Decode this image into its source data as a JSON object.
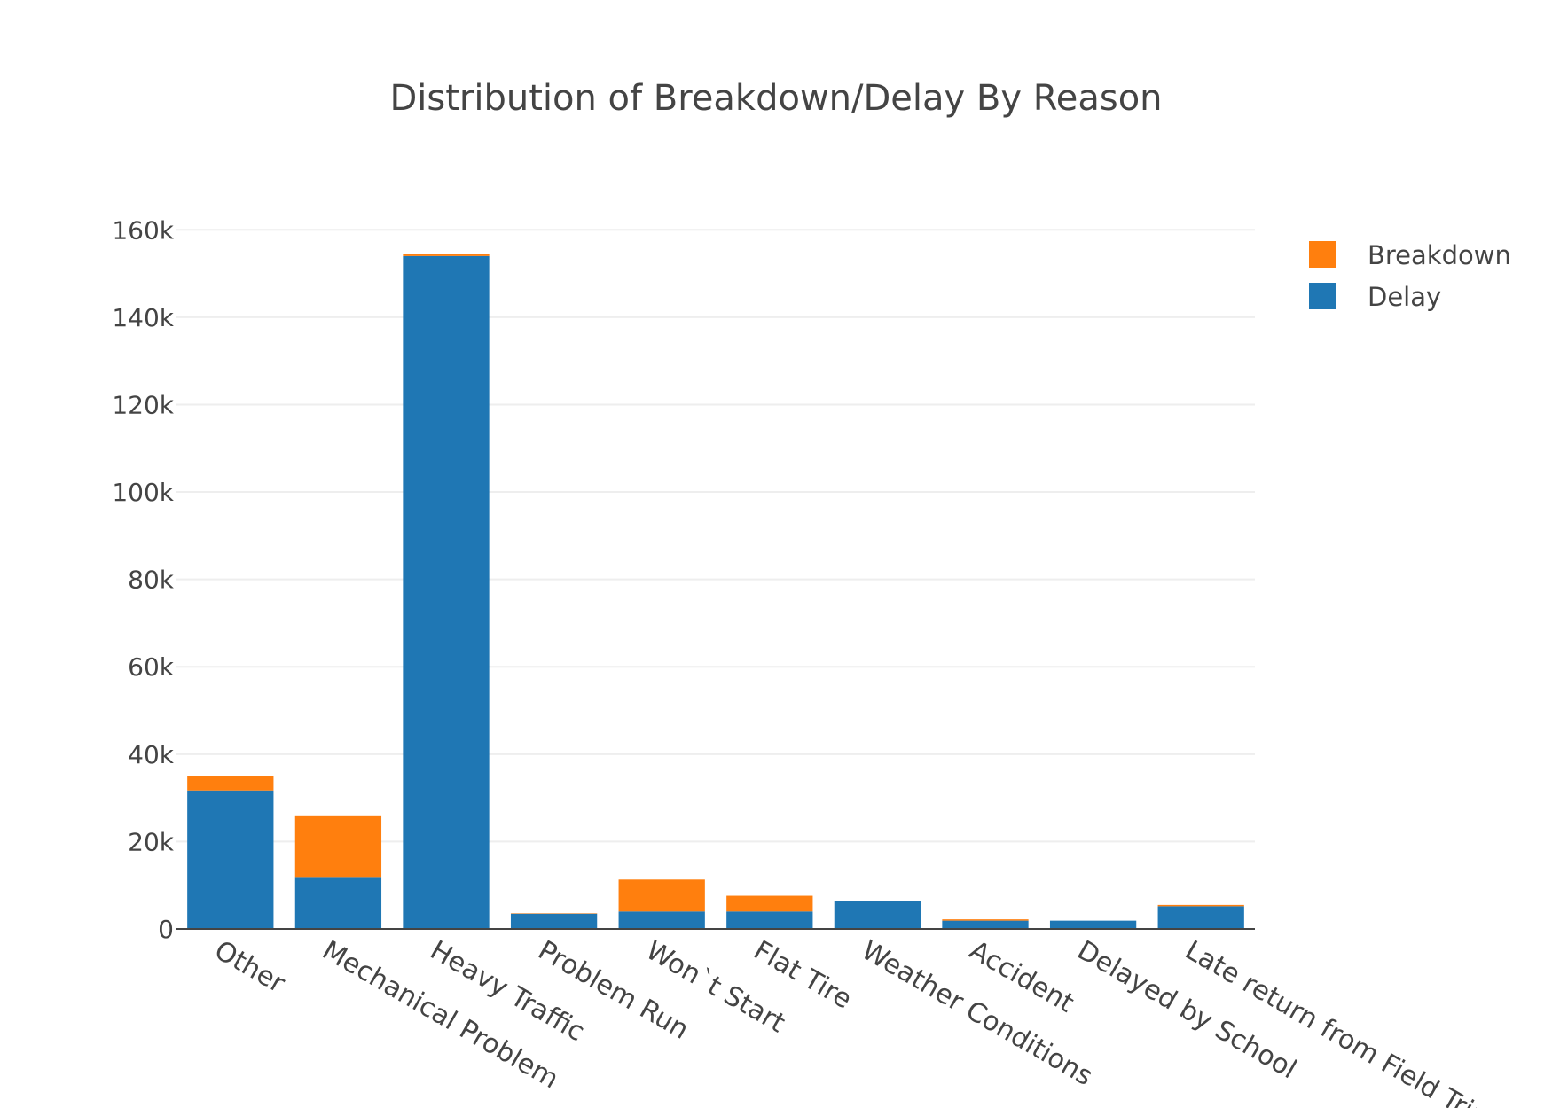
{
  "chart_data": {
    "type": "bar",
    "barmode": "stack",
    "title": "Distribution of Breakdown/Delay By Reason",
    "xlabel": "",
    "ylabel": "",
    "ylim": [
      0,
      170000
    ],
    "yticks": [
      {
        "value": 0,
        "label": "0"
      },
      {
        "value": 20000,
        "label": "20k"
      },
      {
        "value": 40000,
        "label": "40k"
      },
      {
        "value": 60000,
        "label": "60k"
      },
      {
        "value": 80000,
        "label": "80k"
      },
      {
        "value": 100000,
        "label": "100k"
      },
      {
        "value": 120000,
        "label": "120k"
      },
      {
        "value": 140000,
        "label": "140k"
      },
      {
        "value": 160000,
        "label": "160k"
      }
    ],
    "grid": true,
    "legend_position": "top-right",
    "categories": [
      "Other",
      "Mechanical Problem",
      "Heavy Traffic",
      "Problem Run",
      "Won`t Start",
      "Flat Tire",
      "Weather Conditions",
      "Accident",
      "Delayed by School",
      "Late return from Field Trip"
    ],
    "series": [
      {
        "name": "Delay",
        "color": "#1f77b4",
        "values": [
          31700,
          11900,
          154000,
          3500,
          4000,
          4000,
          6300,
          1900,
          1900,
          5200
        ]
      },
      {
        "name": "Breakdown",
        "color": "#ff7f0e",
        "values": [
          3200,
          13900,
          500,
          100,
          7300,
          3600,
          100,
          300,
          0,
          300
        ]
      }
    ]
  }
}
